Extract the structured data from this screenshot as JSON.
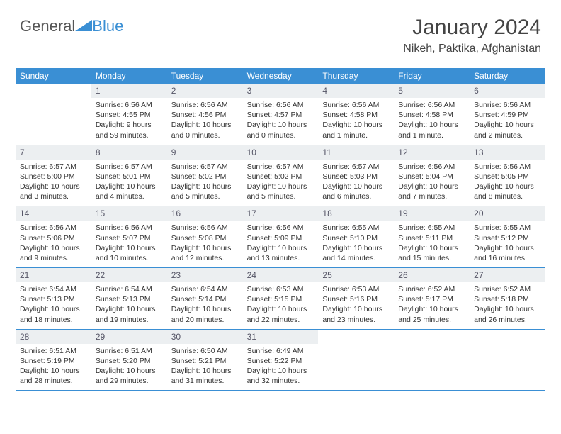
{
  "logo": {
    "text1": "General",
    "text2": "Blue",
    "triangle_color": "#3a8fd4"
  },
  "header": {
    "month": "January 2024",
    "location": "Nikeh, Paktika, Afghanistan"
  },
  "styles": {
    "header_bg": "#3a8fd4",
    "header_text": "#ffffff",
    "daynum_bg": "#eceff1",
    "daynum_text": "#555b66",
    "body_text": "#333333",
    "row_border": "#3a8fd4",
    "weekday_fontsize": 12,
    "daynum_fontsize": 12,
    "content_fontsize": 10.5
  },
  "weekdays": [
    "Sunday",
    "Monday",
    "Tuesday",
    "Wednesday",
    "Thursday",
    "Friday",
    "Saturday"
  ],
  "weeks": [
    [
      null,
      {
        "n": "1",
        "sunrise": "6:56 AM",
        "sunset": "4:55 PM",
        "daylight": "9 hours and 59 minutes."
      },
      {
        "n": "2",
        "sunrise": "6:56 AM",
        "sunset": "4:56 PM",
        "daylight": "10 hours and 0 minutes."
      },
      {
        "n": "3",
        "sunrise": "6:56 AM",
        "sunset": "4:57 PM",
        "daylight": "10 hours and 0 minutes."
      },
      {
        "n": "4",
        "sunrise": "6:56 AM",
        "sunset": "4:58 PM",
        "daylight": "10 hours and 1 minute."
      },
      {
        "n": "5",
        "sunrise": "6:56 AM",
        "sunset": "4:58 PM",
        "daylight": "10 hours and 1 minute."
      },
      {
        "n": "6",
        "sunrise": "6:56 AM",
        "sunset": "4:59 PM",
        "daylight": "10 hours and 2 minutes."
      }
    ],
    [
      {
        "n": "7",
        "sunrise": "6:57 AM",
        "sunset": "5:00 PM",
        "daylight": "10 hours and 3 minutes."
      },
      {
        "n": "8",
        "sunrise": "6:57 AM",
        "sunset": "5:01 PM",
        "daylight": "10 hours and 4 minutes."
      },
      {
        "n": "9",
        "sunrise": "6:57 AM",
        "sunset": "5:02 PM",
        "daylight": "10 hours and 5 minutes."
      },
      {
        "n": "10",
        "sunrise": "6:57 AM",
        "sunset": "5:02 PM",
        "daylight": "10 hours and 5 minutes."
      },
      {
        "n": "11",
        "sunrise": "6:57 AM",
        "sunset": "5:03 PM",
        "daylight": "10 hours and 6 minutes."
      },
      {
        "n": "12",
        "sunrise": "6:56 AM",
        "sunset": "5:04 PM",
        "daylight": "10 hours and 7 minutes."
      },
      {
        "n": "13",
        "sunrise": "6:56 AM",
        "sunset": "5:05 PM",
        "daylight": "10 hours and 8 minutes."
      }
    ],
    [
      {
        "n": "14",
        "sunrise": "6:56 AM",
        "sunset": "5:06 PM",
        "daylight": "10 hours and 9 minutes."
      },
      {
        "n": "15",
        "sunrise": "6:56 AM",
        "sunset": "5:07 PM",
        "daylight": "10 hours and 10 minutes."
      },
      {
        "n": "16",
        "sunrise": "6:56 AM",
        "sunset": "5:08 PM",
        "daylight": "10 hours and 12 minutes."
      },
      {
        "n": "17",
        "sunrise": "6:56 AM",
        "sunset": "5:09 PM",
        "daylight": "10 hours and 13 minutes."
      },
      {
        "n": "18",
        "sunrise": "6:55 AM",
        "sunset": "5:10 PM",
        "daylight": "10 hours and 14 minutes."
      },
      {
        "n": "19",
        "sunrise": "6:55 AM",
        "sunset": "5:11 PM",
        "daylight": "10 hours and 15 minutes."
      },
      {
        "n": "20",
        "sunrise": "6:55 AM",
        "sunset": "5:12 PM",
        "daylight": "10 hours and 16 minutes."
      }
    ],
    [
      {
        "n": "21",
        "sunrise": "6:54 AM",
        "sunset": "5:13 PM",
        "daylight": "10 hours and 18 minutes."
      },
      {
        "n": "22",
        "sunrise": "6:54 AM",
        "sunset": "5:13 PM",
        "daylight": "10 hours and 19 minutes."
      },
      {
        "n": "23",
        "sunrise": "6:54 AM",
        "sunset": "5:14 PM",
        "daylight": "10 hours and 20 minutes."
      },
      {
        "n": "24",
        "sunrise": "6:53 AM",
        "sunset": "5:15 PM",
        "daylight": "10 hours and 22 minutes."
      },
      {
        "n": "25",
        "sunrise": "6:53 AM",
        "sunset": "5:16 PM",
        "daylight": "10 hours and 23 minutes."
      },
      {
        "n": "26",
        "sunrise": "6:52 AM",
        "sunset": "5:17 PM",
        "daylight": "10 hours and 25 minutes."
      },
      {
        "n": "27",
        "sunrise": "6:52 AM",
        "sunset": "5:18 PM",
        "daylight": "10 hours and 26 minutes."
      }
    ],
    [
      {
        "n": "28",
        "sunrise": "6:51 AM",
        "sunset": "5:19 PM",
        "daylight": "10 hours and 28 minutes."
      },
      {
        "n": "29",
        "sunrise": "6:51 AM",
        "sunset": "5:20 PM",
        "daylight": "10 hours and 29 minutes."
      },
      {
        "n": "30",
        "sunrise": "6:50 AM",
        "sunset": "5:21 PM",
        "daylight": "10 hours and 31 minutes."
      },
      {
        "n": "31",
        "sunrise": "6:49 AM",
        "sunset": "5:22 PM",
        "daylight": "10 hours and 32 minutes."
      },
      null,
      null,
      null
    ]
  ],
  "labels": {
    "sunrise": "Sunrise:",
    "sunset": "Sunset:",
    "daylight": "Daylight:"
  }
}
